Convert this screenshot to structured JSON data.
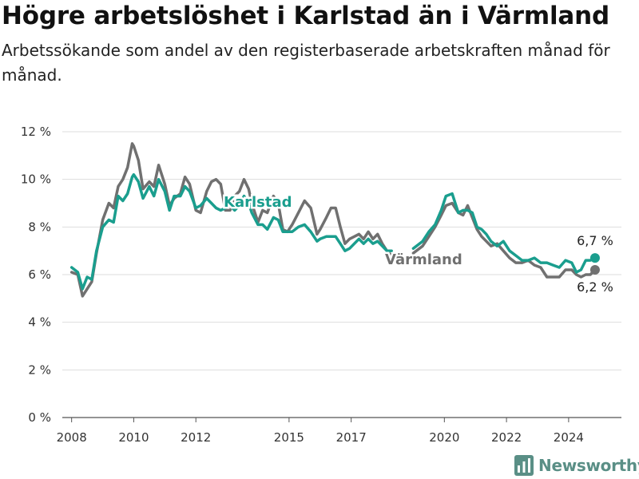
{
  "header": {
    "title": "Högre arbetslöshet i Karlstad än i Värmland",
    "subtitle": "Arbetssökande som andel av den registerbaserade arbetskraften månad för månad."
  },
  "brand": {
    "name": "Newsworthy",
    "color": "#5a8f86",
    "icon": "bar-chart-logo-icon"
  },
  "chart_data": {
    "type": "line",
    "title": "Högre arbetslöshet i Karlstad än i Värmland",
    "subtitle": "Arbetssökande som andel av den registerbaserade arbetskraften månad för månad.",
    "xlabel": "",
    "ylabel": "",
    "xlim": [
      2007.7,
      2025.7
    ],
    "ylim": [
      0,
      12
    ],
    "y_ticks": [
      0,
      2,
      4,
      6,
      8,
      10,
      12
    ],
    "y_tick_labels": [
      "0 %",
      "2 %",
      "4 %",
      "6 %",
      "8 %",
      "10 %",
      "12 %"
    ],
    "x_ticks": [
      2008,
      2010,
      2012,
      2015,
      2017,
      2020,
      2022,
      2024
    ],
    "x_tick_labels": [
      "2008",
      "2010",
      "2012",
      "2015",
      "2017",
      "2020",
      "2022",
      "2024"
    ],
    "grid": true,
    "legend": "inline labels",
    "series": [
      {
        "name": "Värmland",
        "color": "#707070",
        "end_label": "6,2 %",
        "x": [
          2008.0,
          2008.2,
          2008.35,
          2008.5,
          2008.65,
          2008.8,
          2009.0,
          2009.2,
          2009.35,
          2009.5,
          2009.65,
          2009.8,
          2009.95,
          2010.0,
          2010.15,
          2010.3,
          2010.5,
          2010.65,
          2010.8,
          2011.0,
          2011.15,
          2011.3,
          2011.5,
          2011.65,
          2011.8,
          2012.0,
          2012.15,
          2012.35,
          2012.5,
          2012.65,
          2012.8,
          2012.95,
          2013.1,
          2013.25,
          2013.4,
          2013.55,
          2013.7,
          2013.8,
          2014.0,
          2014.15,
          2014.3,
          2014.5,
          2014.65,
          2014.8,
          2014.95,
          2015.1,
          2015.3,
          2015.5,
          2015.7,
          2015.9,
          2016.0,
          2016.2,
          2016.35,
          2016.5,
          2016.65,
          2016.8,
          2016.95,
          2017.1,
          2017.25,
          2017.4,
          2017.55,
          2017.7,
          2017.85,
          2018.0,
          2018.15,
          2018.3,
          null,
          2019.0,
          2019.3,
          2019.5,
          2019.7,
          2019.9,
          2020.05,
          2020.25,
          2020.45,
          2020.6,
          2020.75,
          2020.9,
          2021.05,
          2021.2,
          2021.35,
          2021.5,
          2021.7,
          2021.9,
          2022.1,
          2022.3,
          2022.5,
          2022.7,
          2022.9,
          2023.1,
          2023.3,
          2023.5,
          2023.7,
          2023.9,
          2024.1,
          2024.25,
          2024.4,
          2024.55,
          2024.7,
          2024.85
        ],
        "values": [
          6.1,
          6.0,
          5.1,
          5.4,
          5.7,
          6.9,
          8.3,
          9.0,
          8.8,
          9.7,
          10.0,
          10.5,
          11.5,
          11.4,
          10.8,
          9.6,
          9.9,
          9.7,
          10.6,
          9.8,
          8.9,
          9.2,
          9.4,
          10.1,
          9.8,
          8.7,
          8.6,
          9.5,
          9.9,
          10.0,
          9.8,
          8.7,
          8.7,
          9.3,
          9.5,
          10.0,
          9.6,
          9.0,
          8.2,
          8.7,
          8.6,
          9.3,
          9.0,
          7.9,
          7.8,
          8.1,
          8.6,
          9.1,
          8.8,
          7.7,
          7.9,
          8.4,
          8.8,
          8.8,
          8.0,
          7.3,
          7.5,
          7.6,
          7.7,
          7.5,
          7.8,
          7.5,
          7.7,
          7.3,
          7.0,
          6.8,
          null,
          6.9,
          7.2,
          7.6,
          8.0,
          8.5,
          8.9,
          9.0,
          8.6,
          8.5,
          8.9,
          8.4,
          7.9,
          7.6,
          7.4,
          7.2,
          7.3,
          7.0,
          6.7,
          6.5,
          6.5,
          6.6,
          6.4,
          6.3,
          5.9,
          5.9,
          5.9,
          6.2,
          6.2,
          6.0,
          5.9,
          6.0,
          6.0,
          6.2
        ]
      },
      {
        "name": "Karlstad",
        "color": "#1a9e8e",
        "end_label": "6,7 %",
        "x": [
          2008.0,
          2008.2,
          2008.35,
          2008.5,
          2008.65,
          2008.8,
          2009.0,
          2009.2,
          2009.35,
          2009.5,
          2009.65,
          2009.8,
          2009.95,
          2010.0,
          2010.15,
          2010.3,
          2010.5,
          2010.65,
          2010.8,
          2011.0,
          2011.15,
          2011.3,
          2011.5,
          2011.65,
          2011.8,
          2012.0,
          2012.15,
          2012.35,
          2012.5,
          2012.65,
          2012.8,
          2012.95,
          2013.1,
          2013.25,
          2013.4,
          2013.55,
          2013.7,
          2013.8,
          2014.0,
          2014.15,
          2014.3,
          2014.5,
          2014.65,
          2014.8,
          2014.95,
          2015.1,
          2015.3,
          2015.5,
          2015.7,
          2015.9,
          2016.0,
          2016.2,
          2016.35,
          2016.5,
          2016.65,
          2016.8,
          2016.95,
          2017.1,
          2017.25,
          2017.4,
          2017.55,
          2017.7,
          2017.85,
          2018.0,
          2018.15,
          2018.3,
          null,
          2019.0,
          2019.3,
          2019.5,
          2019.7,
          2019.9,
          2020.05,
          2020.25,
          2020.45,
          2020.6,
          2020.75,
          2020.9,
          2021.05,
          2021.2,
          2021.35,
          2021.5,
          2021.7,
          2021.9,
          2022.1,
          2022.3,
          2022.5,
          2022.7,
          2022.9,
          2023.1,
          2023.3,
          2023.5,
          2023.7,
          2023.9,
          2024.1,
          2024.25,
          2024.4,
          2024.55,
          2024.7,
          2024.85
        ],
        "values": [
          6.3,
          6.1,
          5.4,
          5.9,
          5.8,
          7.0,
          8.0,
          8.3,
          8.2,
          9.3,
          9.1,
          9.4,
          10.1,
          10.2,
          9.9,
          9.2,
          9.7,
          9.3,
          10.0,
          9.5,
          8.7,
          9.3,
          9.3,
          9.7,
          9.5,
          8.8,
          8.9,
          9.2,
          9.0,
          8.8,
          8.7,
          8.8,
          8.9,
          8.7,
          8.9,
          9.3,
          9.0,
          8.6,
          8.1,
          8.1,
          7.9,
          8.4,
          8.3,
          7.8,
          7.8,
          7.8,
          8.0,
          8.1,
          7.8,
          7.4,
          7.5,
          7.6,
          7.6,
          7.6,
          7.3,
          7.0,
          7.1,
          7.3,
          7.5,
          7.3,
          7.5,
          7.3,
          7.4,
          7.2,
          7.0,
          7.0,
          null,
          7.1,
          7.4,
          7.8,
          8.1,
          8.7,
          9.3,
          9.4,
          8.6,
          8.7,
          8.7,
          8.6,
          8.0,
          7.9,
          7.7,
          7.4,
          7.2,
          7.4,
          7.0,
          6.8,
          6.6,
          6.6,
          6.7,
          6.5,
          6.5,
          6.4,
          6.3,
          6.6,
          6.5,
          6.1,
          6.2,
          6.6,
          6.6,
          6.7
        ]
      }
    ]
  }
}
